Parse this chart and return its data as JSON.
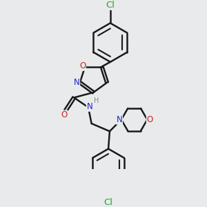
{
  "background_color": "#e8eaec",
  "bond_color": "#1a1a1a",
  "bond_width": 1.8,
  "atom_colors": {
    "C": "#1a1a1a",
    "N": "#2222cc",
    "O": "#cc2222",
    "Cl": "#22aa22",
    "H": "#888888"
  },
  "font_size": 8.5,
  "fig_width": 3.0,
  "fig_height": 3.0,
  "dpi": 100
}
